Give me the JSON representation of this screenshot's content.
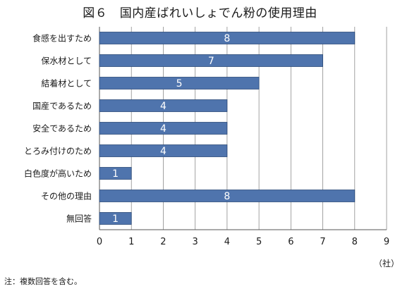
{
  "chart_data": {
    "type": "bar",
    "orientation": "horizontal",
    "title": "図６　国内産ばれいしょでん粉の使用理由",
    "categories": [
      "食感を出すため",
      "保水材として",
      "結着材として",
      "国産であるため",
      "安全であるため",
      "とろみ付けのため",
      "白色度が高いため",
      "その他の理由",
      "無回答"
    ],
    "values": [
      8,
      7,
      5,
      4,
      4,
      4,
      1,
      8,
      1
    ],
    "xlim": [
      0,
      9
    ],
    "xticks": [
      "0",
      "1",
      "2",
      "3",
      "4",
      "5",
      "6",
      "7",
      "8",
      "9"
    ],
    "unit": "（社）",
    "grid": true,
    "bar_color": "#4f74ad",
    "bar_outline": "#2c4a78",
    "value_label_color": "#ffffff"
  },
  "note": "注：複数回答を含む。"
}
